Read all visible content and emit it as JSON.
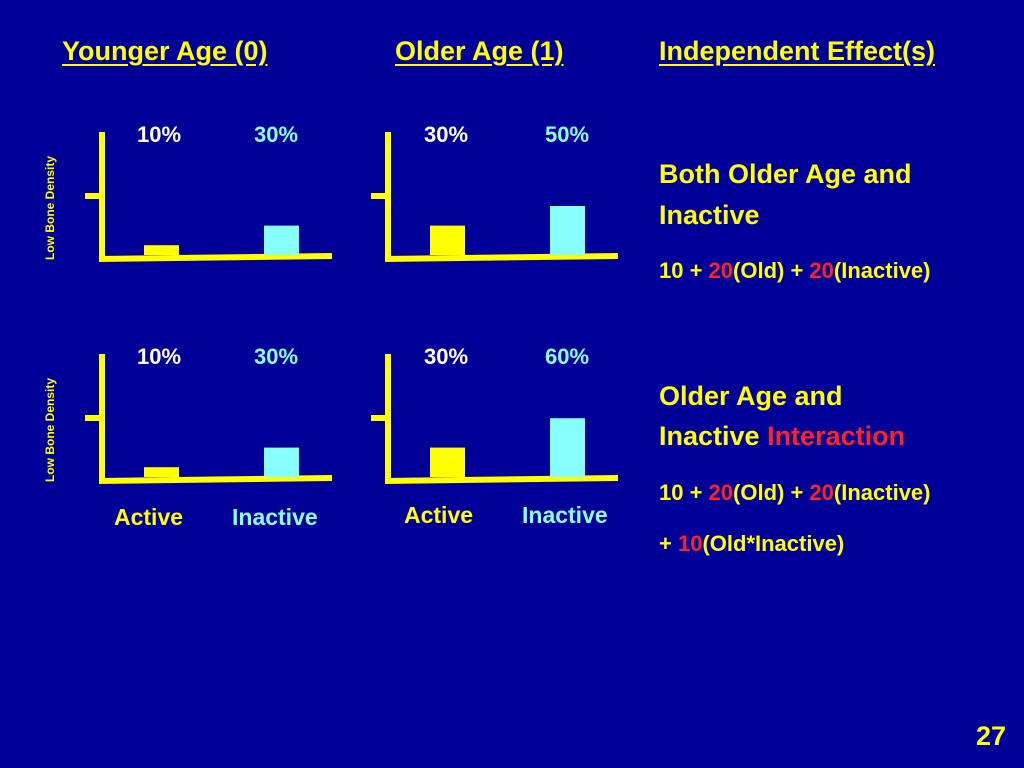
{
  "headings": {
    "younger": "Younger Age (0)",
    "older": "Older Age (1)",
    "effects": "Independent Effect(s)"
  },
  "ylabel": "Low Bone Density",
  "xlabels": {
    "active": "Active",
    "inactive": "Inactive"
  },
  "chart_data": [
    {
      "type": "bar",
      "categories": [
        "Active",
        "Inactive"
      ],
      "values": [
        10,
        30
      ],
      "labels": [
        "10%",
        "30%"
      ],
      "ylabel": "Low Bone Density",
      "colors": [
        "#ffff00",
        "#88ffff"
      ]
    },
    {
      "type": "bar",
      "categories": [
        "Active",
        "Inactive"
      ],
      "values": [
        30,
        50
      ],
      "labels": [
        "30%",
        "50%"
      ],
      "ylabel": "Low Bone Density",
      "colors": [
        "#ffff00",
        "#88ffff"
      ]
    },
    {
      "type": "bar",
      "categories": [
        "Active",
        "Inactive"
      ],
      "values": [
        10,
        30
      ],
      "labels": [
        "10%",
        "30%"
      ],
      "ylabel": "Low Bone Density",
      "colors": [
        "#ffff00",
        "#88ffff"
      ]
    },
    {
      "type": "bar",
      "categories": [
        "Active",
        "Inactive"
      ],
      "values": [
        30,
        60
      ],
      "labels": [
        "30%",
        "60%"
      ],
      "ylabel": "Low Bone Density",
      "colors": [
        "#ffff00",
        "#88ffff"
      ]
    }
  ],
  "block1": {
    "title_line1": "Both Older Age and",
    "title_line2": "Inactive",
    "f_a": "10 + ",
    "f_b": "20",
    "f_c": "(Old) + ",
    "f_d": "20",
    "f_e": "(Inactive)"
  },
  "block2": {
    "title_line1": "Older Age and",
    "title_line2a": "Inactive ",
    "title_line2b": "Interaction",
    "f_a": "10 + ",
    "f_b": "20",
    "f_c": "(Old) + ",
    "f_d": "20",
    "f_e": "(Inactive)",
    "g_a": "+ ",
    "g_b": "10",
    "g_c": "(Old*Inactive)"
  },
  "page_number": "27",
  "colors": {
    "background": "#000099",
    "yellow": "#ffff00",
    "cyan": "#88ffff",
    "red": "#ff2222"
  }
}
